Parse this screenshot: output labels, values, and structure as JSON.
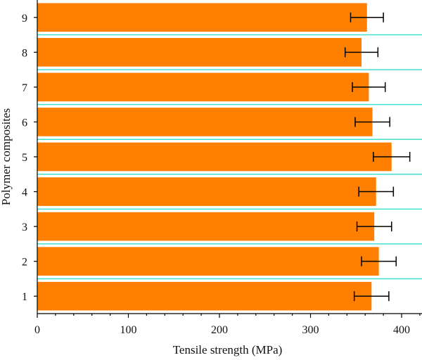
{
  "chart_data": {
    "type": "bar",
    "orientation": "horizontal",
    "title": "",
    "xlabel": "Tensile strength (MPa)",
    "ylabel": "Polymer composites",
    "xlim": [
      0,
      420
    ],
    "xticks": [
      0,
      100,
      200,
      300,
      400
    ],
    "categories": [
      "1",
      "2",
      "3",
      "4",
      "5",
      "6",
      "7",
      "8",
      "9"
    ],
    "values": [
      367,
      375,
      370,
      372,
      389,
      368,
      364,
      356,
      362
    ],
    "errors": [
      19,
      19,
      19,
      19,
      20,
      19,
      18,
      18,
      18
    ],
    "grid": "horizontal separator lines between bars",
    "legend": "none",
    "bar_color": "#ff8000",
    "separator_color": "#40e0d0",
    "errorbar_color": "#000000"
  }
}
